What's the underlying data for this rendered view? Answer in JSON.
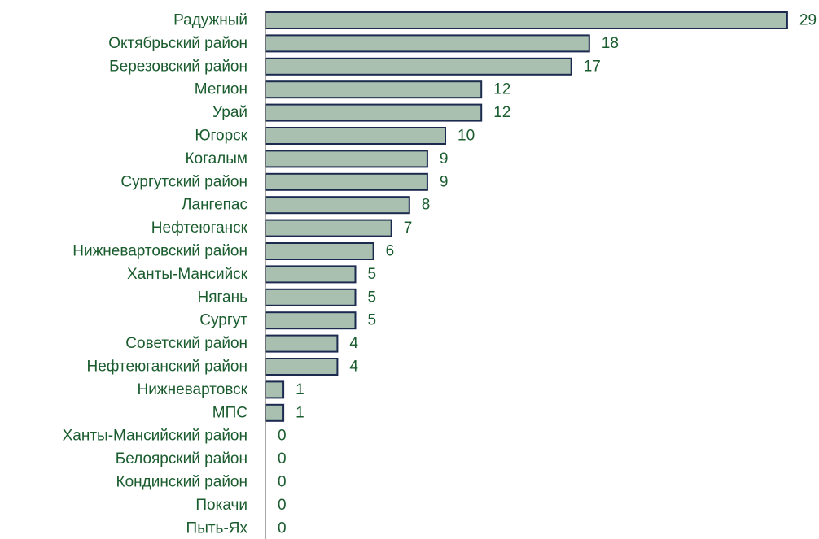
{
  "chart_data": {
    "type": "bar",
    "orientation": "horizontal",
    "categories": [
      "Радужный",
      "Октябрьский район",
      "Березовский район",
      "Мегион",
      "Урай",
      "Югорск",
      "Когалым",
      "Сургутский район",
      "Лангепас",
      "Нефтеюганск",
      "Нижневартовский район",
      "Ханты-Мансийск",
      "Нягань",
      "Сургут",
      "Советский район",
      "Нефтеюганский район",
      "Нижневартовск",
      "МПС",
      "Ханты-Мансийский район",
      "Белоярский район",
      "Кондинский район",
      "Покачи",
      "Пыть-Ях"
    ],
    "values": [
      29,
      18,
      17,
      12,
      12,
      10,
      9,
      9,
      8,
      7,
      6,
      5,
      5,
      5,
      4,
      4,
      1,
      1,
      0,
      0,
      0,
      0,
      0
    ],
    "xlim": [
      0,
      29
    ],
    "grid": false,
    "legend": "none",
    "bar_color": "#a9bfaf",
    "bar_edge_color": "#1c2a50",
    "label_color": "#1a5c2e",
    "axis_color": "#888888"
  }
}
